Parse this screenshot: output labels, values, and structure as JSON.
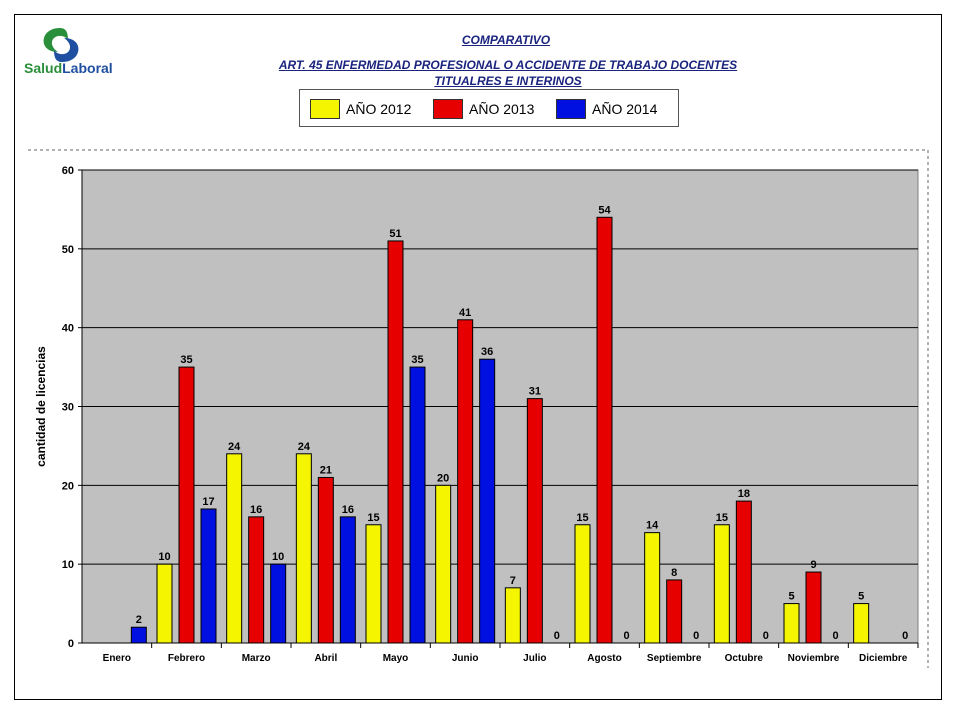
{
  "header": {
    "logo_text_part1": "Salud",
    "logo_text_part2": "Laboral",
    "title": "COMPARATIVO",
    "subtitle_line1": "ART. 45 ENFERMEDAD PROFESIONAL  O ACCIDENTE  DE TRABAJO DOCENTES",
    "subtitle_line2": "TITUALRES E INTERINOS"
  },
  "colors": {
    "y2012": "#f5f500",
    "y2013": "#e60000",
    "y2014": "#0010e0",
    "plot_bg": "#c0c0c0",
    "gridline": "#000000"
  },
  "chart_data": {
    "type": "bar",
    "title": "",
    "xlabel": "",
    "ylabel": "cantidad de licencias",
    "ylim": [
      0,
      60
    ],
    "yticks": [
      0,
      10,
      20,
      30,
      40,
      50,
      60
    ],
    "grid": true,
    "legend_position": "top",
    "categories": [
      "Enero",
      "Febrero",
      "Marzo",
      "Abril",
      "Mayo",
      "Junio",
      "Julio",
      "Agosto",
      "Septiembre",
      "Octubre",
      "Noviembre",
      "Diciembre"
    ],
    "series": [
      {
        "name": "AÑO 2012",
        "color": "#f5f500",
        "values": [
          null,
          10,
          24,
          24,
          15,
          20,
          7,
          15,
          14,
          15,
          5,
          5
        ]
      },
      {
        "name": "AÑO 2013",
        "color": "#e60000",
        "values": [
          null,
          35,
          16,
          21,
          51,
          41,
          31,
          54,
          8,
          18,
          9,
          null
        ]
      },
      {
        "name": "AÑO 2014",
        "color": "#0010e0",
        "values": [
          2,
          17,
          10,
          16,
          35,
          36,
          0,
          0,
          0,
          0,
          0,
          0
        ]
      }
    ]
  }
}
